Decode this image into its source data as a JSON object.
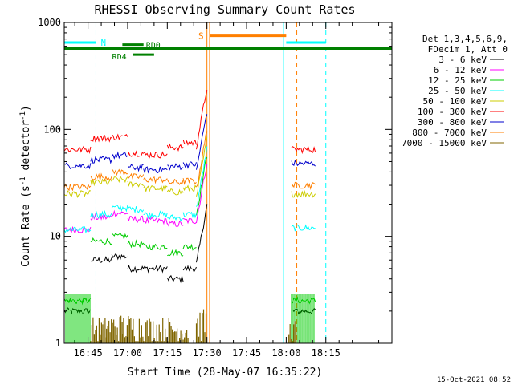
{
  "chart_data": {
    "type": "line",
    "title": "RHESSI Observing Summary Count Rates",
    "xlabel": "Start Time (28-May-07 16:35:22)",
    "ylabel_main": "Count Rate (s",
    "ylabel_sup1": "-1",
    "ylabel_mid": " detector",
    "ylabel_sup2": "-1",
    "ylabel_end": ")",
    "footer": "15-Oct-2021 08:52",
    "x_range_min": [
      36,
      160
    ],
    "y_range": [
      1,
      1000
    ],
    "y_scale": "log",
    "x_ticks": [
      {
        "min": 45,
        "label": "16:45"
      },
      {
        "min": 60,
        "label": "17:00"
      },
      {
        "min": 75,
        "label": "17:15"
      },
      {
        "min": 90,
        "label": "17:30"
      },
      {
        "min": 105,
        "label": "17:45"
      },
      {
        "min": 120,
        "label": "18:00"
      },
      {
        "min": 135,
        "label": "18:15"
      }
    ],
    "y_ticks": [
      {
        "v": 1,
        "label": "1"
      },
      {
        "v": 10,
        "label": "10"
      },
      {
        "v": 100,
        "label": "100"
      },
      {
        "v": 1000,
        "label": "1000"
      }
    ],
    "legend": {
      "header": [
        "Det 1,3,4,5,6,9,",
        "FDecim 1, Att 0"
      ],
      "position": "right"
    },
    "series": [
      {
        "name": "3 - 6 keV",
        "color": "#000000",
        "segments": [
          [
            36,
            46,
            2.0
          ],
          [
            46,
            54,
            6.0
          ],
          [
            54,
            60,
            6.5
          ],
          [
            60,
            66,
            5.0
          ],
          [
            66,
            75,
            5.0
          ],
          [
            75,
            81,
            4.0
          ],
          [
            81,
            86,
            5.0
          ],
          [
            86,
            90,
            12.0
          ],
          [
            122,
            131,
            2.0
          ]
        ]
      },
      {
        "name": "6 - 12 keV",
        "color": "#ff00ff",
        "segments": [
          [
            36,
            46,
            11.5
          ],
          [
            46,
            54,
            15.0
          ],
          [
            54,
            60,
            16.5
          ],
          [
            60,
            66,
            14.5
          ],
          [
            66,
            75,
            14.0
          ],
          [
            75,
            81,
            13.0
          ],
          [
            81,
            86,
            14.0
          ],
          [
            86,
            90,
            30.0
          ]
        ]
      },
      {
        "name": "12 - 25 keV",
        "color": "#00cc00",
        "segments": [
          [
            36,
            46,
            2.5
          ],
          [
            46,
            54,
            9.0
          ],
          [
            54,
            60,
            10.0
          ],
          [
            60,
            66,
            8.5
          ],
          [
            66,
            75,
            8.0
          ],
          [
            75,
            81,
            7.0
          ],
          [
            81,
            86,
            8.0
          ],
          [
            86,
            90,
            35.0
          ],
          [
            122,
            131,
            2.5
          ]
        ]
      },
      {
        "name": "25 - 50 keV",
        "color": "#00ffff",
        "segments": [
          [
            36,
            46,
            11.5
          ],
          [
            46,
            54,
            16.0
          ],
          [
            54,
            60,
            18.5
          ],
          [
            60,
            66,
            18.0
          ],
          [
            66,
            75,
            16.0
          ],
          [
            75,
            81,
            15.0
          ],
          [
            81,
            86,
            16.0
          ],
          [
            86,
            90,
            40.0
          ],
          [
            122,
            131,
            12.0
          ]
        ]
      },
      {
        "name": "50 - 100 keV",
        "color": "#cccc00",
        "segments": [
          [
            36,
            46,
            25.0
          ],
          [
            46,
            54,
            32.0
          ],
          [
            54,
            60,
            34.0
          ],
          [
            60,
            66,
            31.0
          ],
          [
            66,
            75,
            28.0
          ],
          [
            75,
            81,
            26.0
          ],
          [
            81,
            86,
            28.0
          ],
          [
            86,
            90,
            50.0
          ],
          [
            122,
            131,
            25.0
          ]
        ]
      },
      {
        "name": "100 - 300 keV",
        "color": "#ff0000",
        "segments": [
          [
            36,
            46,
            65.0
          ],
          [
            46,
            54,
            83.0
          ],
          [
            54,
            60,
            85.0
          ],
          [
            60,
            66,
            60.0
          ],
          [
            66,
            75,
            58.0
          ],
          [
            75,
            81,
            68.0
          ],
          [
            81,
            86,
            75.0
          ],
          [
            86,
            90,
            150.0
          ],
          [
            122,
            131,
            65.0
          ]
        ]
      },
      {
        "name": "300 - 800 keV",
        "color": "#0000cc",
        "segments": [
          [
            36,
            46,
            46.0
          ],
          [
            46,
            54,
            52.0
          ],
          [
            54,
            60,
            57.0
          ],
          [
            60,
            66,
            44.0
          ],
          [
            66,
            75,
            42.0
          ],
          [
            75,
            81,
            45.0
          ],
          [
            81,
            86,
            47.0
          ],
          [
            86,
            90,
            90.0
          ],
          [
            122,
            131,
            48.0
          ]
        ]
      },
      {
        "name": "800 - 7000 keV",
        "color": "#ff7f00",
        "segments": [
          [
            36,
            46,
            29.0
          ],
          [
            46,
            54,
            36.0
          ],
          [
            54,
            60,
            40.0
          ],
          [
            60,
            66,
            36.0
          ],
          [
            66,
            75,
            34.0
          ],
          [
            75,
            81,
            32.0
          ],
          [
            81,
            86,
            33.0
          ],
          [
            86,
            90,
            60.0
          ],
          [
            122,
            131,
            30.0
          ]
        ]
      },
      {
        "name": "7000 - 15000 keV",
        "color": "#806600",
        "segments": []
      }
    ],
    "noise_band": {
      "series_name": "7000 - 15000 keV",
      "ranges": [
        [
          46,
          52
        ],
        [
          52,
          58
        ],
        [
          58,
          66
        ],
        [
          66,
          76
        ],
        [
          76,
          83
        ],
        [
          86,
          90
        ],
        [
          121,
          124
        ]
      ],
      "levels": [
        1.7,
        1.8,
        1.8,
        1.7,
        1.6,
        2.0,
        1.6
      ]
    },
    "green_band": {
      "series_name": "12 - 25 keV",
      "ranges": [
        [
          36,
          46
        ],
        [
          122,
          131
        ]
      ],
      "level": 2.5
    },
    "status_bars": {
      "night": {
        "label": "N",
        "color": "#00ffff",
        "segments": [
          [
            36,
            48
          ],
          [
            120,
            135
          ]
        ],
        "y_level": 650
      },
      "saa": {
        "label": "S",
        "color": "#ff7f00",
        "segments": [
          [
            91,
            120
          ]
        ],
        "y_level": 750
      },
      "decim": {
        "label": "RD0",
        "label2": "RD4",
        "color": "#008000",
        "segment": [
          36,
          160
        ],
        "y_level": 570,
        "raised": [
          58,
          66
        ],
        "raised_level": 620,
        "lowered": [
          62,
          70
        ],
        "lowered_level": 500
      }
    },
    "vlines": [
      {
        "min": 36,
        "color": "#00ffff",
        "dash": false
      },
      {
        "min": 48,
        "color": "#00ffff",
        "dash": true
      },
      {
        "min": 90,
        "color": "#ff7f00",
        "dash": false
      },
      {
        "min": 91,
        "color": "#ff7f00",
        "dash": false
      },
      {
        "min": 119,
        "color": "#00ffff",
        "dash": false
      },
      {
        "min": 124,
        "color": "#ff7f00",
        "dash": true
      },
      {
        "min": 135,
        "color": "#00ffff",
        "dash": true
      }
    ]
  }
}
